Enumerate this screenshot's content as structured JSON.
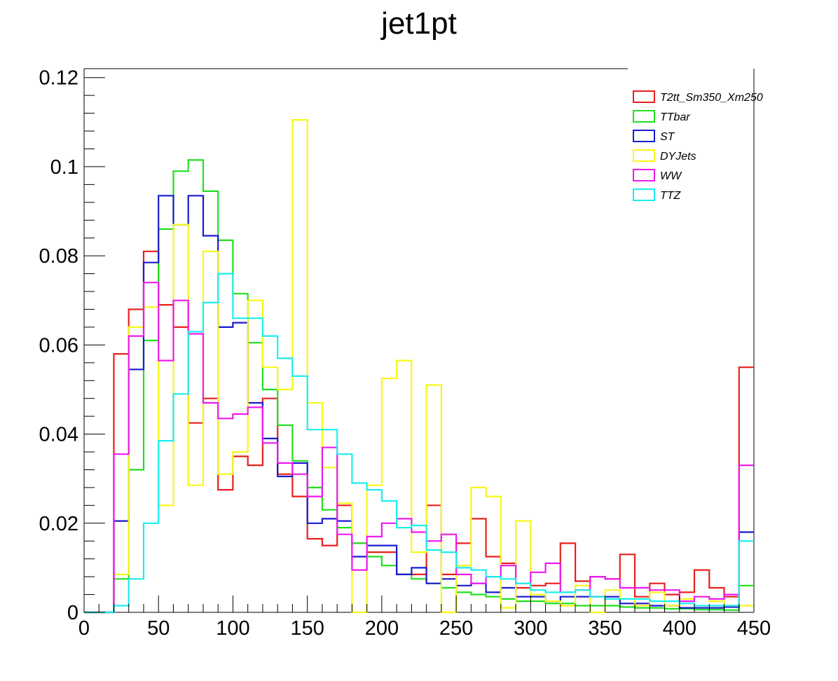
{
  "chart_data": {
    "type": "histogram",
    "title": "jet1pt",
    "xlabel": "",
    "ylabel": "",
    "xlim": [
      0,
      450
    ],
    "ylim": [
      0,
      0.122
    ],
    "bin_edges_start": 0,
    "bin_width": 10,
    "x_ticks": [
      0,
      50,
      100,
      150,
      200,
      250,
      300,
      350,
      400,
      450
    ],
    "x_tick_labels": [
      "0",
      "50",
      "100",
      "150",
      "200",
      "250",
      "300",
      "350",
      "400",
      "450"
    ],
    "y_ticks": [
      0,
      0.02,
      0.04,
      0.06,
      0.08,
      0.1,
      0.12
    ],
    "y_tick_labels": [
      "0",
      "0.02",
      "0.04",
      "0.06",
      "0.08",
      "0.1",
      "0.12"
    ],
    "grid": false,
    "legend_position": "top-right",
    "series": [
      {
        "name": "T2tt_Sm350_Xm250",
        "color": "#e8201c",
        "values": [
          0,
          0,
          0.058,
          0.068,
          0.081,
          0.069,
          0.064,
          0.0425,
          0.048,
          0.0275,
          0.035,
          0.033,
          0.048,
          0.031,
          0.026,
          0.0165,
          0.015,
          0.024,
          0.0155,
          0.0135,
          0.0135,
          0.0085,
          0.0085,
          0.024,
          0.0085,
          0.0155,
          0.021,
          0.0125,
          0.011,
          0.0055,
          0.006,
          0.0065,
          0.0155,
          0.007,
          0.008,
          0.0075,
          0.013,
          0.0035,
          0.0065,
          0.004,
          0.0045,
          0.0095,
          0.0055,
          0.0035,
          0.055
        ]
      },
      {
        "name": "TTbar",
        "color": "#20e020",
        "values": [
          0,
          0,
          0.0075,
          0.032,
          0.061,
          0.086,
          0.099,
          0.1015,
          0.0945,
          0.0835,
          0.0715,
          0.0605,
          0.05,
          0.042,
          0.034,
          0.028,
          0.023,
          0.019,
          0.0155,
          0.0125,
          0.0105,
          0.0085,
          0.0075,
          0.0065,
          0.0055,
          0.0045,
          0.004,
          0.0035,
          0.003,
          0.0025,
          0.0025,
          0.002,
          0.002,
          0.0015,
          0.0015,
          0.0015,
          0.0012,
          0.001,
          0.001,
          0.0008,
          0.0008,
          0.0006,
          0.0006,
          0.0005,
          0.006
        ]
      },
      {
        "name": "ST",
        "color": "#1a1ad0",
        "values": [
          0,
          0,
          0.0205,
          0.0545,
          0.0785,
          0.0935,
          0.087,
          0.0935,
          0.0845,
          0.064,
          0.065,
          0.047,
          0.039,
          0.0305,
          0.0335,
          0.02,
          0.021,
          0.0205,
          0.0125,
          0.015,
          0.015,
          0.0085,
          0.01,
          0.0065,
          0.0075,
          0.006,
          0.0065,
          0.0045,
          0.0055,
          0.0035,
          0.0035,
          0.0025,
          0.0035,
          0.0035,
          0.0035,
          0.0035,
          0.002,
          0.002,
          0.0015,
          0.0015,
          0.001,
          0.001,
          0.001,
          0.0012,
          0.018
        ]
      },
      {
        "name": "DYJets",
        "color": "#f7f71a",
        "values": [
          0,
          0,
          0.0085,
          0.064,
          0.0685,
          0.024,
          0.087,
          0.0285,
          0.081,
          0.031,
          0.036,
          0.07,
          0.055,
          0.05,
          0.1105,
          0.047,
          0.0325,
          0.0245,
          0,
          0.0285,
          0.0525,
          0.0565,
          0.0135,
          0.051,
          0,
          0.0105,
          0.028,
          0.026,
          0.001,
          0.0205,
          0.004,
          0.0025,
          0.0015,
          0.006,
          0,
          0.005,
          0.003,
          0.0015,
          0.0045,
          0.0015,
          0.003,
          0.0035,
          0.0025,
          0.0015,
          0.0015
        ]
      },
      {
        "name": "WW",
        "color": "#ee1aee",
        "values": [
          0,
          0,
          0.0355,
          0.062,
          0.074,
          0.0565,
          0.07,
          0.0625,
          0.047,
          0.0435,
          0.0445,
          0.046,
          0.038,
          0.0335,
          0.031,
          0.026,
          0.037,
          0.0175,
          0.0095,
          0.017,
          0.02,
          0.021,
          0.018,
          0.016,
          0.0175,
          0.0085,
          0.0065,
          0.008,
          0.0105,
          0.0065,
          0.009,
          0.011,
          0.0045,
          0.005,
          0.008,
          0.0075,
          0.0055,
          0.0055,
          0.005,
          0.005,
          0.0025,
          0.0035,
          0.003,
          0.004,
          0.033
        ]
      },
      {
        "name": "TTZ",
        "color": "#1aeeee",
        "values": [
          0,
          0,
          0.0015,
          0.0075,
          0.02,
          0.0385,
          0.049,
          0.063,
          0.0695,
          0.076,
          0.066,
          0.066,
          0.062,
          0.057,
          0.053,
          0.041,
          0.041,
          0.0355,
          0.029,
          0.0275,
          0.025,
          0.019,
          0.0195,
          0.014,
          0.0135,
          0.01,
          0.0095,
          0.008,
          0.0075,
          0.0065,
          0.005,
          0.0045,
          0.0045,
          0.005,
          0.0035,
          0.003,
          0.003,
          0.003,
          0.0025,
          0.0025,
          0.002,
          0.0015,
          0.0015,
          0.0015,
          0.016
        ]
      }
    ]
  }
}
